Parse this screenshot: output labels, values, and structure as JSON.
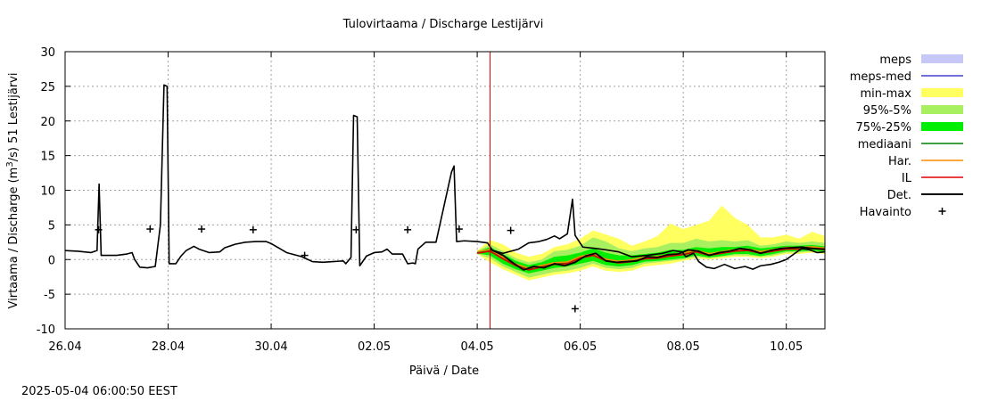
{
  "chart_data": {
    "type": "line",
    "title": "Tulovirtaama / Discharge  Lestijärvi",
    "xlabel": "Päivä / Date",
    "ylabel": "Virtaama / Discharge (m³/s)  51 Lestijärvi",
    "ylabel_parts": [
      "Virtaama / Discharge (m",
      "3",
      "/s)  51  Lestijärvi"
    ],
    "timestamp": "2025-05-04 06:00:50 EEST",
    "xlim": [
      0,
      14.75
    ],
    "ylim": [
      -10,
      30
    ],
    "yticks": [
      -10,
      -5,
      0,
      5,
      10,
      15,
      20,
      25,
      30
    ],
    "xticks": [
      {
        "day": 0,
        "label": "26.04"
      },
      {
        "day": 2,
        "label": "28.04"
      },
      {
        "day": 4,
        "label": "30.04"
      },
      {
        "day": 6,
        "label": "02.05"
      },
      {
        "day": 8,
        "label": "04.05"
      },
      {
        "day": 10,
        "label": "06.05"
      },
      {
        "day": 12,
        "label": "08.05"
      },
      {
        "day": 14,
        "label": "10.05"
      }
    ],
    "grid": true,
    "now_line_day": 8.25,
    "legend": [
      {
        "label": "meps",
        "kind": "area",
        "color": "#c8c8f8"
      },
      {
        "label": "meps-med",
        "kind": "line",
        "color": "#4040c8"
      },
      {
        "label": "min-max",
        "kind": "area",
        "color": "#ffff60"
      },
      {
        "label": "95%-5%",
        "kind": "area",
        "color": "#a8f060"
      },
      {
        "label": "75%-25%",
        "kind": "area",
        "color": "#00ee00"
      },
      {
        "label": "mediaani",
        "kind": "line",
        "color": "#008000"
      },
      {
        "label": "Har.",
        "kind": "line",
        "color": "#ff8c00"
      },
      {
        "label": "IL",
        "kind": "line",
        "color": "#e00000"
      },
      {
        "label": "Det.",
        "kind": "line",
        "color": "#000000"
      },
      {
        "label": "Havainto",
        "kind": "marker",
        "color": "#000000"
      }
    ],
    "series": [
      {
        "name": "Det.",
        "color": "#000000",
        "points": [
          [
            0,
            1.3
          ],
          [
            0.25,
            1.2
          ],
          [
            0.5,
            1.0
          ],
          [
            0.62,
            1.3
          ],
          [
            0.66,
            10.9
          ],
          [
            0.7,
            0.6
          ],
          [
            1.0,
            0.6
          ],
          [
            1.2,
            0.8
          ],
          [
            1.3,
            1.0
          ],
          [
            1.35,
            0.0
          ],
          [
            1.45,
            -1.1
          ],
          [
            1.6,
            -1.2
          ],
          [
            1.75,
            -1.0
          ],
          [
            1.85,
            5.0
          ],
          [
            1.92,
            25.2
          ],
          [
            1.98,
            25.0
          ],
          [
            2.02,
            -0.6
          ],
          [
            2.15,
            -0.6
          ],
          [
            2.25,
            0.5
          ],
          [
            2.35,
            1.3
          ],
          [
            2.5,
            1.9
          ],
          [
            2.6,
            1.5
          ],
          [
            2.8,
            1.0
          ],
          [
            3.0,
            1.1
          ],
          [
            3.1,
            1.7
          ],
          [
            3.3,
            2.2
          ],
          [
            3.5,
            2.5
          ],
          [
            3.7,
            2.6
          ],
          [
            3.9,
            2.6
          ],
          [
            4.0,
            2.3
          ],
          [
            4.3,
            1.0
          ],
          [
            4.6,
            0.4
          ],
          [
            4.8,
            -0.3
          ],
          [
            5.0,
            -0.4
          ],
          [
            5.2,
            -0.3
          ],
          [
            5.4,
            -0.2
          ],
          [
            5.45,
            -0.6
          ],
          [
            5.55,
            0.3
          ],
          [
            5.6,
            20.8
          ],
          [
            5.67,
            20.6
          ],
          [
            5.72,
            -0.9
          ],
          [
            5.85,
            0.5
          ],
          [
            6.0,
            1.0
          ],
          [
            6.15,
            1.1
          ],
          [
            6.25,
            1.5
          ],
          [
            6.35,
            0.8
          ],
          [
            6.45,
            0.8
          ],
          [
            6.55,
            0.8
          ],
          [
            6.65,
            -0.6
          ],
          [
            6.75,
            -0.5
          ],
          [
            6.8,
            -0.6
          ],
          [
            6.85,
            1.5
          ],
          [
            7.0,
            2.5
          ],
          [
            7.2,
            2.5
          ],
          [
            7.5,
            12.6
          ],
          [
            7.55,
            13.5
          ],
          [
            7.6,
            2.6
          ],
          [
            7.75,
            2.7
          ],
          [
            8.0,
            2.6
          ],
          [
            8.2,
            2.4
          ],
          [
            8.3,
            1.3
          ],
          [
            8.5,
            0.9
          ],
          [
            8.8,
            1.5
          ],
          [
            9.0,
            2.4
          ],
          [
            9.2,
            2.6
          ],
          [
            9.35,
            2.9
          ],
          [
            9.5,
            3.4
          ],
          [
            9.6,
            3.0
          ],
          [
            9.75,
            3.7
          ],
          [
            9.85,
            8.7
          ],
          [
            9.9,
            3.5
          ],
          [
            10.05,
            1.8
          ],
          [
            10.3,
            1.6
          ],
          [
            10.5,
            1.4
          ],
          [
            10.75,
            1.1
          ],
          [
            11.0,
            0.4
          ],
          [
            11.3,
            0.6
          ],
          [
            11.6,
            0.9
          ],
          [
            11.8,
            1.3
          ],
          [
            11.97,
            1.1
          ],
          [
            12.0,
            0.9
          ],
          [
            12.05,
            0.4
          ],
          [
            12.2,
            0.9
          ],
          [
            12.3,
            -0.3
          ],
          [
            12.45,
            -1.1
          ],
          [
            12.6,
            -1.3
          ],
          [
            12.8,
            -0.7
          ],
          [
            13.0,
            -1.3
          ],
          [
            13.2,
            -1.0
          ],
          [
            13.35,
            -1.4
          ],
          [
            13.5,
            -0.9
          ],
          [
            13.7,
            -0.7
          ],
          [
            13.85,
            -0.4
          ],
          [
            14.0,
            0.0
          ],
          [
            14.15,
            0.8
          ],
          [
            14.3,
            1.6
          ],
          [
            14.45,
            1.4
          ],
          [
            14.6,
            1.0
          ],
          [
            14.75,
            1.1
          ]
        ]
      },
      {
        "name": "Det. (forecast)",
        "color": "#000000",
        "points": [
          [
            8.25,
            1.5
          ],
          [
            8.5,
            0.6
          ],
          [
            8.7,
            -0.5
          ],
          [
            8.9,
            -1.5
          ],
          [
            9.1,
            -1.0
          ],
          [
            9.3,
            -1.2
          ],
          [
            9.5,
            -0.6
          ],
          [
            9.7,
            -0.9
          ],
          [
            9.9,
            -0.4
          ],
          [
            10.1,
            0.5
          ],
          [
            10.3,
            0.9
          ],
          [
            10.5,
            -0.2
          ],
          [
            10.7,
            -0.4
          ],
          [
            10.9,
            -0.3
          ],
          [
            11.1,
            -0.2
          ],
          [
            11.3,
            0.4
          ],
          [
            11.5,
            0.3
          ],
          [
            11.7,
            0.7
          ],
          [
            11.9,
            0.8
          ],
          [
            12.1,
            1.4
          ],
          [
            12.3,
            1.2
          ],
          [
            12.5,
            0.6
          ],
          [
            12.7,
            1.0
          ],
          [
            12.9,
            1.2
          ],
          [
            13.1,
            1.6
          ],
          [
            13.3,
            1.4
          ],
          [
            13.5,
            0.9
          ],
          [
            13.7,
            1.3
          ],
          [
            13.9,
            1.6
          ],
          [
            14.1,
            1.7
          ],
          [
            14.3,
            1.8
          ],
          [
            14.5,
            1.6
          ],
          [
            14.75,
            1.5
          ]
        ]
      }
    ],
    "forecast_days": [
      8.0,
      8.25,
      8.5,
      8.75,
      9.0,
      9.25,
      9.5,
      9.75,
      10.0,
      10.25,
      10.5,
      10.75,
      11.0,
      11.25,
      11.5,
      11.75,
      12.0,
      12.25,
      12.5,
      12.75,
      13.0,
      13.25,
      13.5,
      13.75,
      14.0,
      14.25,
      14.5,
      14.75
    ],
    "median_values": [
      1.0,
      1.3,
      0.2,
      -0.8,
      -1.4,
      -1.0,
      -0.6,
      -0.5,
      0.3,
      0.7,
      -0.1,
      -0.4,
      -0.2,
      0.2,
      0.3,
      0.6,
      0.8,
      1.2,
      0.7,
      1.0,
      1.3,
      1.4,
      1.0,
      1.3,
      1.6,
      1.6,
      1.7,
      1.5
    ],
    "bands": [
      {
        "name": "min-max",
        "color": "#ffff60",
        "upper": [
          1.3,
          2.8,
          2.2,
          1.0,
          0.4,
          0.8,
          1.8,
          2.2,
          3.0,
          4.2,
          3.6,
          3.0,
          2.0,
          2.6,
          3.4,
          5.2,
          4.4,
          5.0,
          5.6,
          7.8,
          6.0,
          5.0,
          3.2,
          3.2,
          3.6,
          3.0,
          4.0,
          3.4
        ],
        "lower": [
          0.8,
          -0.4,
          -1.4,
          -2.2,
          -3.0,
          -2.6,
          -2.2,
          -2.0,
          -1.6,
          -1.0,
          -1.6,
          -1.8,
          -1.6,
          -1.0,
          -0.8,
          -0.6,
          -0.2,
          0.2,
          0.0,
          0.2,
          0.4,
          0.4,
          0.2,
          0.4,
          0.8,
          0.8,
          1.0,
          0.8
        ]
      },
      {
        "name": "95%-5%",
        "color": "#a8f060",
        "upper": [
          1.2,
          2.2,
          1.2,
          0.2,
          -0.4,
          0.0,
          1.2,
          1.4,
          2.0,
          3.2,
          2.6,
          1.6,
          1.2,
          1.6,
          1.8,
          2.4,
          2.4,
          3.0,
          2.6,
          2.8,
          2.6,
          2.8,
          2.0,
          2.2,
          2.6,
          2.4,
          2.6,
          2.4
        ],
        "lower": [
          0.8,
          0.2,
          -1.0,
          -1.8,
          -2.6,
          -2.2,
          -1.8,
          -1.6,
          -1.2,
          -0.6,
          -1.2,
          -1.4,
          -1.2,
          -0.6,
          -0.4,
          -0.2,
          0.0,
          0.4,
          0.2,
          0.4,
          0.6,
          0.6,
          0.4,
          0.6,
          1.0,
          1.0,
          1.2,
          1.0
        ]
      },
      {
        "name": "75%-25%",
        "color": "#00ee00",
        "upper": [
          1.1,
          1.8,
          0.8,
          -0.2,
          -0.8,
          -0.4,
          0.4,
          0.6,
          1.0,
          1.6,
          1.0,
          0.6,
          0.6,
          0.8,
          1.0,
          1.4,
          1.4,
          1.8,
          1.6,
          1.8,
          1.8,
          2.0,
          1.6,
          1.8,
          2.0,
          2.0,
          2.1,
          1.9
        ],
        "lower": [
          0.9,
          0.6,
          -0.6,
          -1.4,
          -2.0,
          -1.6,
          -1.2,
          -1.0,
          -0.6,
          -0.2,
          -0.8,
          -1.0,
          -0.8,
          -0.3,
          -0.2,
          0.0,
          0.2,
          0.6,
          0.3,
          0.5,
          0.8,
          0.8,
          0.5,
          0.8,
          1.2,
          1.2,
          1.3,
          1.1
        ]
      }
    ],
    "har_offset": 0.15,
    "il_offset": -0.1,
    "observations": [
      [
        0.65,
        4.3
      ],
      [
        1.65,
        4.4
      ],
      [
        2.65,
        4.4
      ],
      [
        3.65,
        4.3
      ],
      [
        4.65,
        0.6
      ],
      [
        5.65,
        4.3
      ],
      [
        6.65,
        4.3
      ],
      [
        7.65,
        4.4
      ],
      [
        8.65,
        4.2
      ],
      [
        9.9,
        -7.1
      ]
    ]
  }
}
